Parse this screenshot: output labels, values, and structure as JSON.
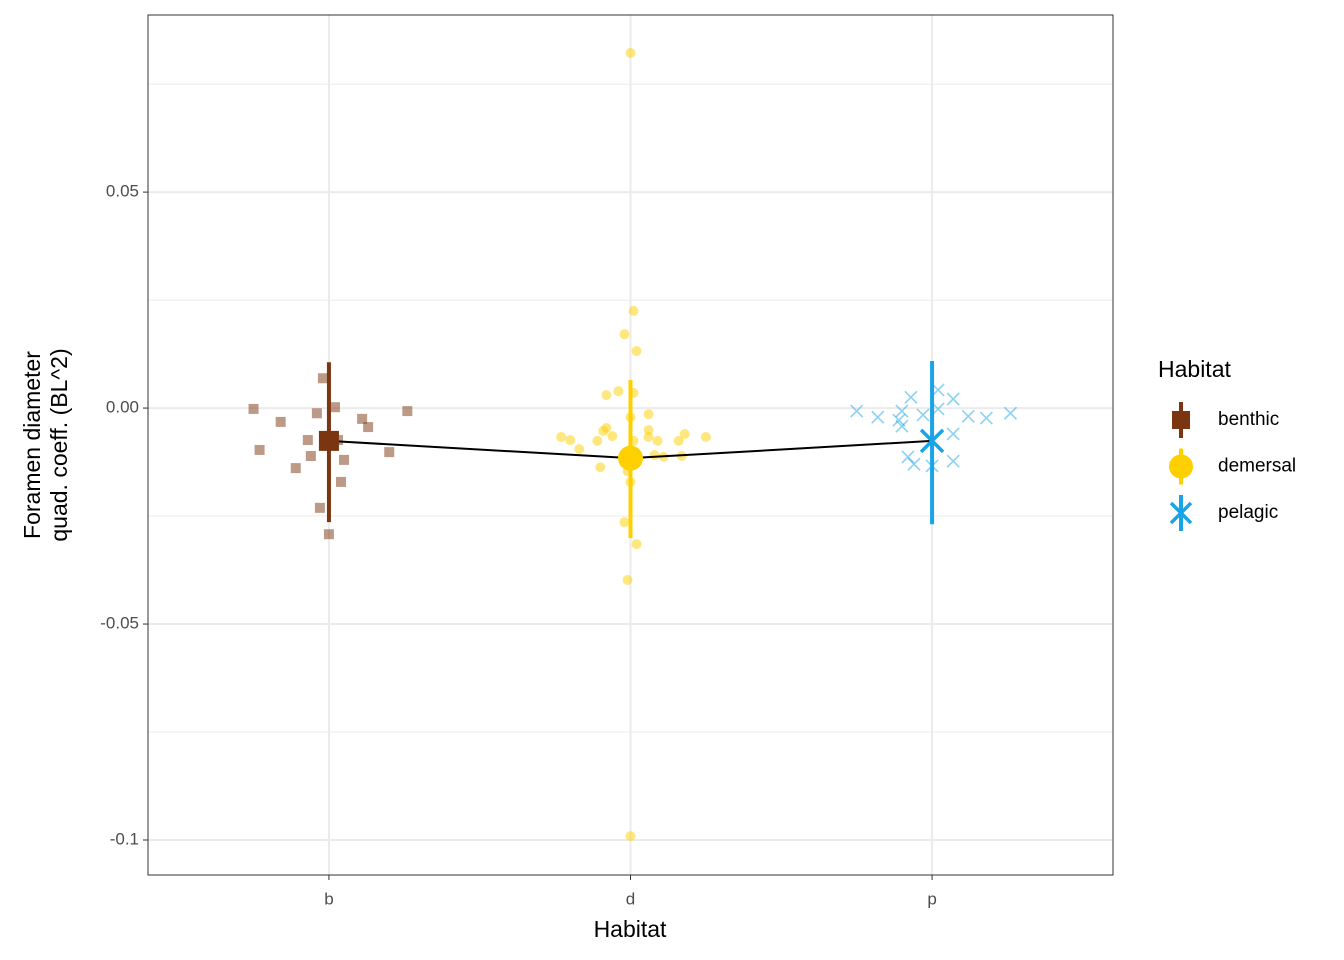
{
  "chart_data": {
    "type": "strip",
    "xlabel": "Habitat",
    "ylabel": [
      "Foramen diameter",
      "quad. coeff. (BL^2)"
    ],
    "categories": [
      "b",
      "d",
      "p"
    ],
    "legend_title": "Habitat",
    "legend": "right",
    "grid": true,
    "line_color": "#000000",
    "ylim": [
      -0.1081,
      0.091
    ],
    "yticks": [
      -0.1,
      -0.05,
      {
        "value": 0,
        "label": "0.00"
      },
      0.05
    ],
    "yticks_labels_fix": null,
    "yminor_ticks": [
      -0.075,
      -0.025,
      0.025,
      0.075
    ],
    "series": [
      {
        "name": "benthic",
        "color": "#7b3510",
        "marker": "square",
        "x": [
          0.75,
          0.77,
          0.84,
          0.89,
          0.93,
          0.94,
          0.96,
          0.97,
          0.98,
          1.0,
          1.02,
          1.03,
          1.05,
          1.04,
          1.11,
          1.13,
          1.2,
          1.26
        ],
        "values": [
          -0.0002,
          -0.0097,
          -0.0032,
          -0.0139,
          -0.0074,
          -0.0111,
          -0.0012,
          -0.0231,
          0.0069,
          -0.0292,
          0.0002,
          -0.0074,
          -0.012,
          -0.0171,
          -0.0025,
          -0.0044,
          -0.0102,
          -0.0007
        ],
        "mean": -0.0076,
        "ci": [
          -0.0264,
          0.0106
        ]
      },
      {
        "name": "demersal",
        "color": "#ffd000",
        "marker": "circle",
        "x": [
          2.0,
          2.01,
          1.98,
          2.02,
          1.92,
          1.96,
          2.01,
          2.06,
          2.0,
          1.77,
          1.8,
          1.83,
          1.89,
          1.91,
          1.92,
          1.94,
          2.01,
          2.06,
          2.06,
          2.09,
          2.18,
          2.25,
          2.16,
          2.08,
          2.11,
          2.17,
          2.0,
          1.99,
          1.9,
          2.0,
          1.98,
          2.02,
          1.99,
          2.0
        ],
        "values": [
          0.0822,
          0.0225,
          0.0171,
          0.0132,
          0.003,
          0.0039,
          0.0035,
          -0.0014,
          -0.0021,
          -0.0067,
          -0.0074,
          -0.0095,
          -0.0076,
          -0.0053,
          -0.0046,
          -0.0065,
          -0.0076,
          -0.0051,
          -0.0067,
          -0.0076,
          -0.006,
          -0.0067,
          -0.0076,
          -0.0109,
          -0.0113,
          -0.0111,
          -0.0127,
          -0.0146,
          -0.0137,
          -0.0171,
          -0.0264,
          -0.0315,
          -0.0398,
          -0.0991
        ],
        "mean": -0.0116,
        "ci": [
          -0.0301,
          0.0065
        ]
      },
      {
        "name": "pelagic",
        "color": "#1ba3e8",
        "marker": "x",
        "x": [
          2.75,
          2.82,
          2.9,
          2.93,
          2.97,
          2.9,
          2.89,
          3.02,
          3.07,
          3.02,
          3.12,
          3.18,
          3.26,
          2.92,
          2.94,
          3.0,
          3.07,
          3.07
        ],
        "values": [
          -0.0007,
          -0.0021,
          -0.0007,
          0.0025,
          -0.0016,
          -0.0042,
          -0.0028,
          0.0042,
          0.0021,
          -0.0002,
          -0.0019,
          -0.0023,
          -0.0012,
          -0.0113,
          -0.013,
          -0.0134,
          -0.006,
          -0.0123
        ],
        "mean": -0.0076,
        "ci": [
          -0.0269,
          0.0109
        ]
      }
    ]
  }
}
